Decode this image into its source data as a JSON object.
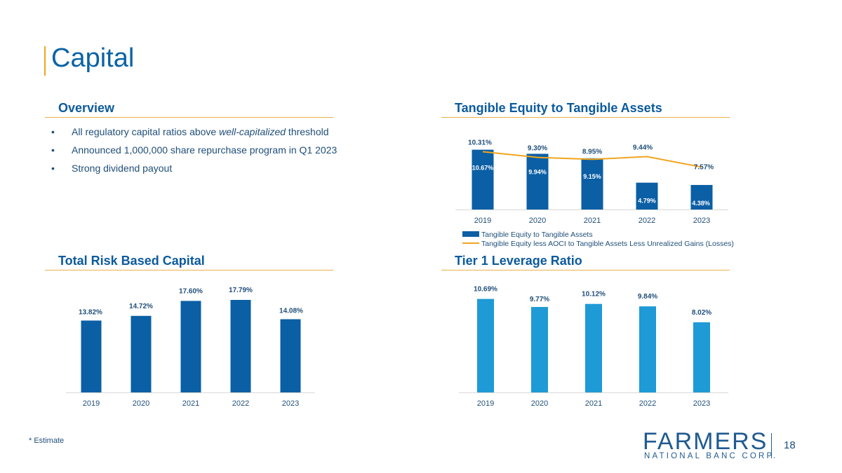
{
  "page": {
    "title": "Capital",
    "footnote": "* Estimate",
    "page_number": "18",
    "brand": {
      "name": "FARMERS",
      "tagline": "NATIONAL BANC CORP."
    },
    "colors": {
      "dark_blue": "#0b5fa5",
      "light_blue": "#1e9ad6",
      "gold": "#f0a51e",
      "text": "#1f4e79"
    }
  },
  "overview": {
    "title": "Overview",
    "bullets": [
      {
        "before": "All regulatory capital ratios above ",
        "emphasis": "well-capitalized",
        "after": " threshold"
      },
      {
        "before": "Announced 1,000,000 share repurchase program in Q1 2023",
        "emphasis": "",
        "after": ""
      },
      {
        "before": "Strong dividend payout",
        "emphasis": "",
        "after": ""
      }
    ]
  },
  "chart_data": [
    {
      "id": "tangible",
      "title": "Tangible Equity to Tangible Assets",
      "type": "bar",
      "categories": [
        "2019",
        "2020",
        "2021",
        "2022",
        "2023"
      ],
      "series": [
        {
          "name": "Tangible Equity to Tangible Assets",
          "type": "bar",
          "values": [
            10.67,
            9.94,
            9.15,
            4.79,
            4.38
          ],
          "labels": [
            "10.67%",
            "9.94%",
            "9.15%",
            "4.79%",
            "4.38%"
          ]
        },
        {
          "name": "Tangible Equity less AOCI to Tangible Assets Less Unrealized Gains (Losses)",
          "type": "line",
          "values": [
            10.31,
            9.3,
            8.95,
            9.44,
            7.57
          ],
          "labels": [
            "10.31%",
            "9.30%",
            "8.95%",
            "9.44%",
            "7.57%"
          ]
        }
      ],
      "ylim": [
        0,
        12
      ],
      "legend": "bottom"
    },
    {
      "id": "trbc",
      "title": "Total Risk Based Capital",
      "type": "bar",
      "categories": [
        "2019",
        "2020",
        "2021",
        "2022",
        "2023"
      ],
      "series": [
        {
          "name": "Total Risk Based Capital",
          "type": "bar",
          "values": [
            13.82,
            14.72,
            17.6,
            17.79,
            14.08
          ],
          "labels": [
            "13.82%",
            "14.72%",
            "17.60%",
            "17.79%",
            "14.08%"
          ]
        }
      ],
      "ylim": [
        0,
        20
      ]
    },
    {
      "id": "tier1",
      "title": "Tier 1 Leverage Ratio",
      "type": "bar",
      "categories": [
        "2019",
        "2020",
        "2021",
        "2022",
        "2023"
      ],
      "series": [
        {
          "name": "Tier 1 Leverage Ratio",
          "type": "bar",
          "values": [
            10.69,
            9.77,
            10.12,
            9.84,
            8.02
          ],
          "labels": [
            "10.69%",
            "9.77%",
            "10.12%",
            "9.84%",
            "8.02%"
          ]
        }
      ],
      "ylim": [
        0,
        12
      ]
    }
  ]
}
